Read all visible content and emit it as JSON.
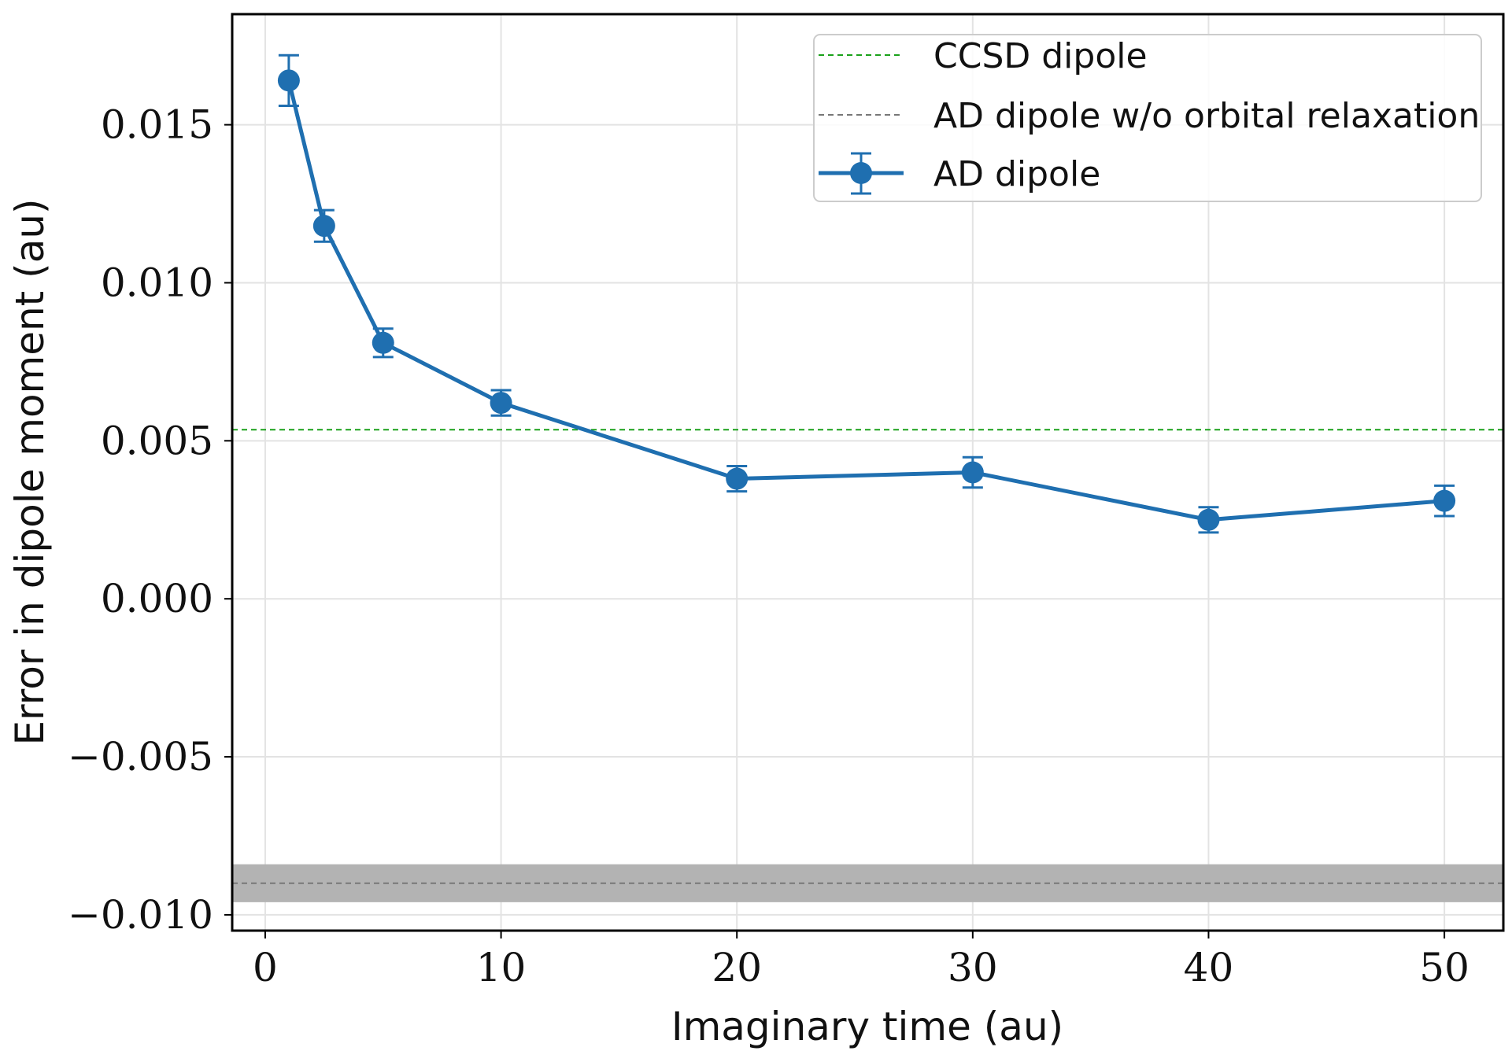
{
  "chart_data": {
    "type": "line",
    "xlabel": "Imaginary time (au)",
    "ylabel": "Error in dipole moment (au)",
    "xlim": [
      -1.4,
      52.5
    ],
    "ylim": [
      -0.0105,
      0.0185
    ],
    "xticks": [
      0,
      10,
      20,
      30,
      40,
      50
    ],
    "xtick_labels": [
      "0",
      "10",
      "20",
      "30",
      "40",
      "50"
    ],
    "yticks": [
      -0.01,
      -0.005,
      0.0,
      0.005,
      0.01,
      0.015
    ],
    "ytick_labels": [
      "−0.010",
      "−0.005",
      "0.000",
      "0.005",
      "0.010",
      "0.015"
    ],
    "grid": true,
    "legend_position": "top-right",
    "series": [
      {
        "name": "AD dipole",
        "color": "#1f6fb0",
        "marker": "circle",
        "x": [
          1,
          2.5,
          5,
          10,
          20,
          30,
          40,
          50
        ],
        "y": [
          0.0164,
          0.0118,
          0.0081,
          0.0062,
          0.0038,
          0.004,
          0.0025,
          0.0031
        ],
        "yerr": [
          0.0008,
          0.0005,
          0.00045,
          0.0004,
          0.0004,
          0.00048,
          0.0004,
          0.00048
        ]
      }
    ],
    "reference_lines": [
      {
        "name": "CCSD dipole",
        "y": 0.00535,
        "color": "#1aa11a",
        "style": "dashed"
      },
      {
        "name": "AD dipole w/o orbital relaxation",
        "y": -0.009,
        "band": [
          -0.0096,
          -0.0084
        ],
        "color": "#777777",
        "band_color": "#b3b3b3",
        "style": "dashed"
      }
    ],
    "legend": [
      "CCSD dipole",
      "AD dipole w/o orbital relaxation",
      "AD dipole"
    ]
  }
}
